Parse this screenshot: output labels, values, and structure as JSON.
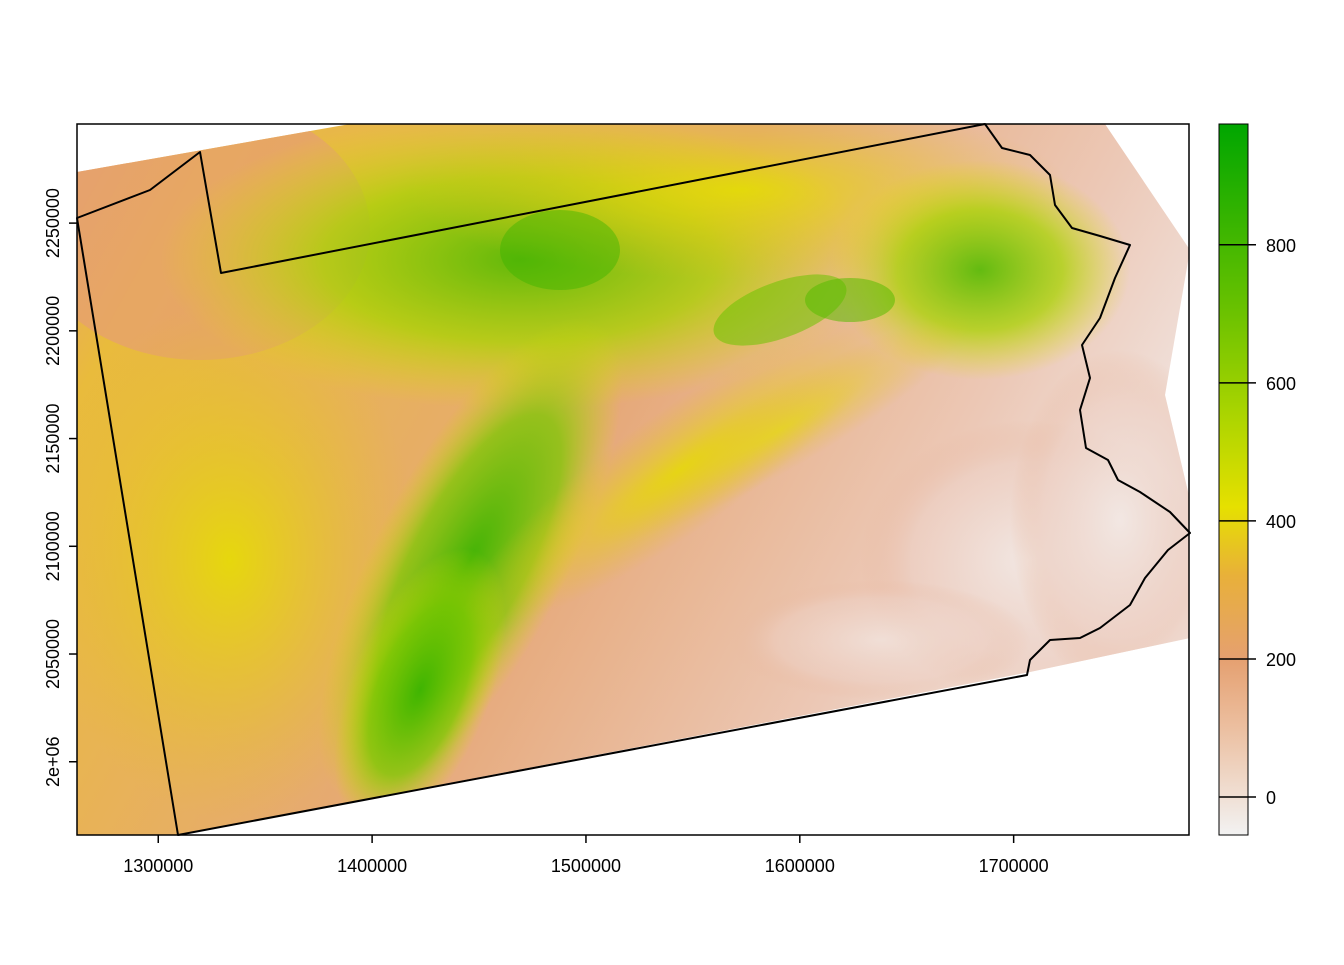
{
  "map": {
    "type": "raster-elevation",
    "x_range": [
      1262000,
      1782000
    ],
    "y_range": [
      1966000,
      2296000
    ],
    "x_ticks": [
      {
        "value": 1300000,
        "label": "1300000"
      },
      {
        "value": 1400000,
        "label": "1400000"
      },
      {
        "value": 1500000,
        "label": "1500000"
      },
      {
        "value": 1600000,
        "label": "1600000"
      },
      {
        "value": 1700000,
        "label": "1700000"
      }
    ],
    "y_ticks": [
      {
        "value": 2000000,
        "label": "2e+06"
      },
      {
        "value": 2050000,
        "label": "2050000"
      },
      {
        "value": 2100000,
        "label": "2100000"
      },
      {
        "value": 2150000,
        "label": "2150000"
      },
      {
        "value": 2200000,
        "label": "2200000"
      },
      {
        "value": 2250000,
        "label": "2250000"
      }
    ],
    "border_color": "#000000"
  },
  "legend": {
    "range": [
      -55,
      975
    ],
    "ticks": [
      {
        "value": 0,
        "label": "0"
      },
      {
        "value": 200,
        "label": "200"
      },
      {
        "value": 400,
        "label": "400"
      },
      {
        "value": 600,
        "label": "600"
      },
      {
        "value": 800,
        "label": "800"
      }
    ],
    "color_stops": [
      {
        "value": -55,
        "color": "#f2f2f2"
      },
      {
        "value": 100,
        "color": "#ecbfa0"
      },
      {
        "value": 200,
        "color": "#e5a070"
      },
      {
        "value": 320,
        "color": "#e8b03a"
      },
      {
        "value": 420,
        "color": "#e6e000"
      },
      {
        "value": 560,
        "color": "#a8d400"
      },
      {
        "value": 700,
        "color": "#6cc200"
      },
      {
        "value": 975,
        "color": "#00a600"
      }
    ]
  }
}
